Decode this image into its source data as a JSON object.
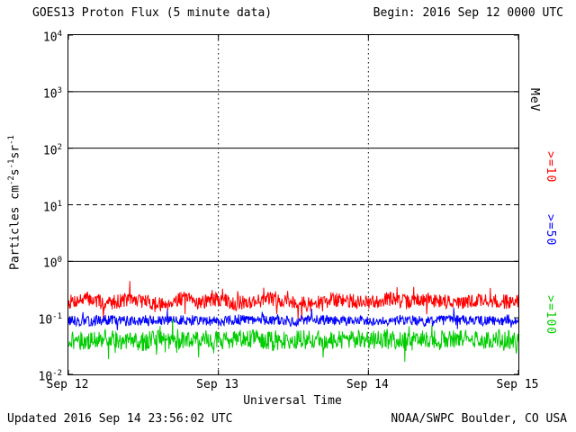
{
  "header": {
    "title": "GOES13 Proton Flux (5 minute data)",
    "begin": "Begin: 2016 Sep 12 0000 UTC"
  },
  "footer": {
    "updated": "Updated 2016 Sep 14 23:56:02 UTC",
    "credit": "NOAA/SWPC Boulder, CO USA"
  },
  "chart_data": {
    "type": "line",
    "title": "GOES13 Proton Flux (5 minute data)",
    "xlabel": "Universal Time",
    "ylabel_parts": [
      {
        "text": "Particles cm"
      },
      {
        "sup": "-2"
      },
      {
        "text": "s"
      },
      {
        "sup": "-1"
      },
      {
        "text": "sr"
      },
      {
        "sup": "-1"
      }
    ],
    "x_axis": {
      "start": "2016 Sep 12 0000 UTC",
      "end": "2016 Sep 15 0000 UTC",
      "days": 3,
      "tick_labels": [
        "Sep 12",
        "Sep 13",
        "Sep 14",
        "Sep 15"
      ],
      "gridline_days": [
        1,
        2
      ]
    },
    "y_axis": {
      "scale": "log",
      "min": 0.01,
      "max": 10000,
      "tick_base": "10",
      "tick_exponents": [
        4,
        3,
        2,
        1,
        0,
        -1,
        -2
      ],
      "solid_gridline_exponents": [
        3,
        2,
        0
      ],
      "dashed_gridline_exponents": [
        1
      ]
    },
    "right_labels": [
      {
        "name": "mev-unit",
        "text": "MeV",
        "color": "#000000",
        "column": 0,
        "slot": 0
      },
      {
        "name": "ge-10",
        "text": ">=10",
        "color": "#ff0000",
        "column": 1,
        "slot": 1
      },
      {
        "name": "ge-50",
        "text": ">=50",
        "color": "#0000ff",
        "column": 1,
        "slot": 2
      },
      {
        "name": "ge-100",
        "text": ">=100",
        "color": "#00cc00",
        "column": 1,
        "slot": 3
      }
    ],
    "sample_interval_minutes": 5,
    "series": [
      {
        "name": ">=10 MeV",
        "color": "#ff0000",
        "seed": 7,
        "approx_mean": 0.2,
        "approx_range": [
          0.13,
          0.35
        ],
        "noise_decades": 0.13,
        "spike_decades": 0.22,
        "trend_values": [
          0.19,
          0.22,
          0.18,
          0.21,
          0.2,
          0.17,
          0.22,
          0.19,
          0.21,
          0.18,
          0.2,
          0.22,
          0.19,
          0.17,
          0.21,
          0.2,
          0.18,
          0.22,
          0.19,
          0.21,
          0.2,
          0.18,
          0.21,
          0.19,
          0.2
        ]
      },
      {
        "name": ">=50 MeV",
        "color": "#0000ff",
        "seed": 13,
        "approx_mean": 0.09,
        "approx_range": [
          0.06,
          0.13
        ],
        "noise_decades": 0.09,
        "spike_decades": 0.14,
        "trend_values": [
          0.09,
          0.086,
          0.093,
          0.089,
          0.091,
          0.087,
          0.092,
          0.09,
          0.088,
          0.093,
          0.089,
          0.091,
          0.086,
          0.092,
          0.09,
          0.088,
          0.091,
          0.089,
          0.093,
          0.087,
          0.09,
          0.092,
          0.088,
          0.09,
          0.089
        ]
      },
      {
        "name": ">=100 MeV",
        "color": "#00cc00",
        "seed": 21,
        "approx_mean": 0.04,
        "approx_range": [
          0.017,
          0.075
        ],
        "noise_decades": 0.17,
        "spike_decades": 0.24,
        "trend_values": [
          0.041,
          0.039,
          0.043,
          0.04,
          0.038,
          0.042,
          0.04,
          0.044,
          0.039,
          0.041,
          0.043,
          0.038,
          0.04,
          0.042,
          0.039,
          0.041,
          0.04,
          0.043,
          0.038,
          0.041,
          0.04,
          0.042,
          0.039,
          0.041,
          0.04
        ]
      }
    ]
  }
}
